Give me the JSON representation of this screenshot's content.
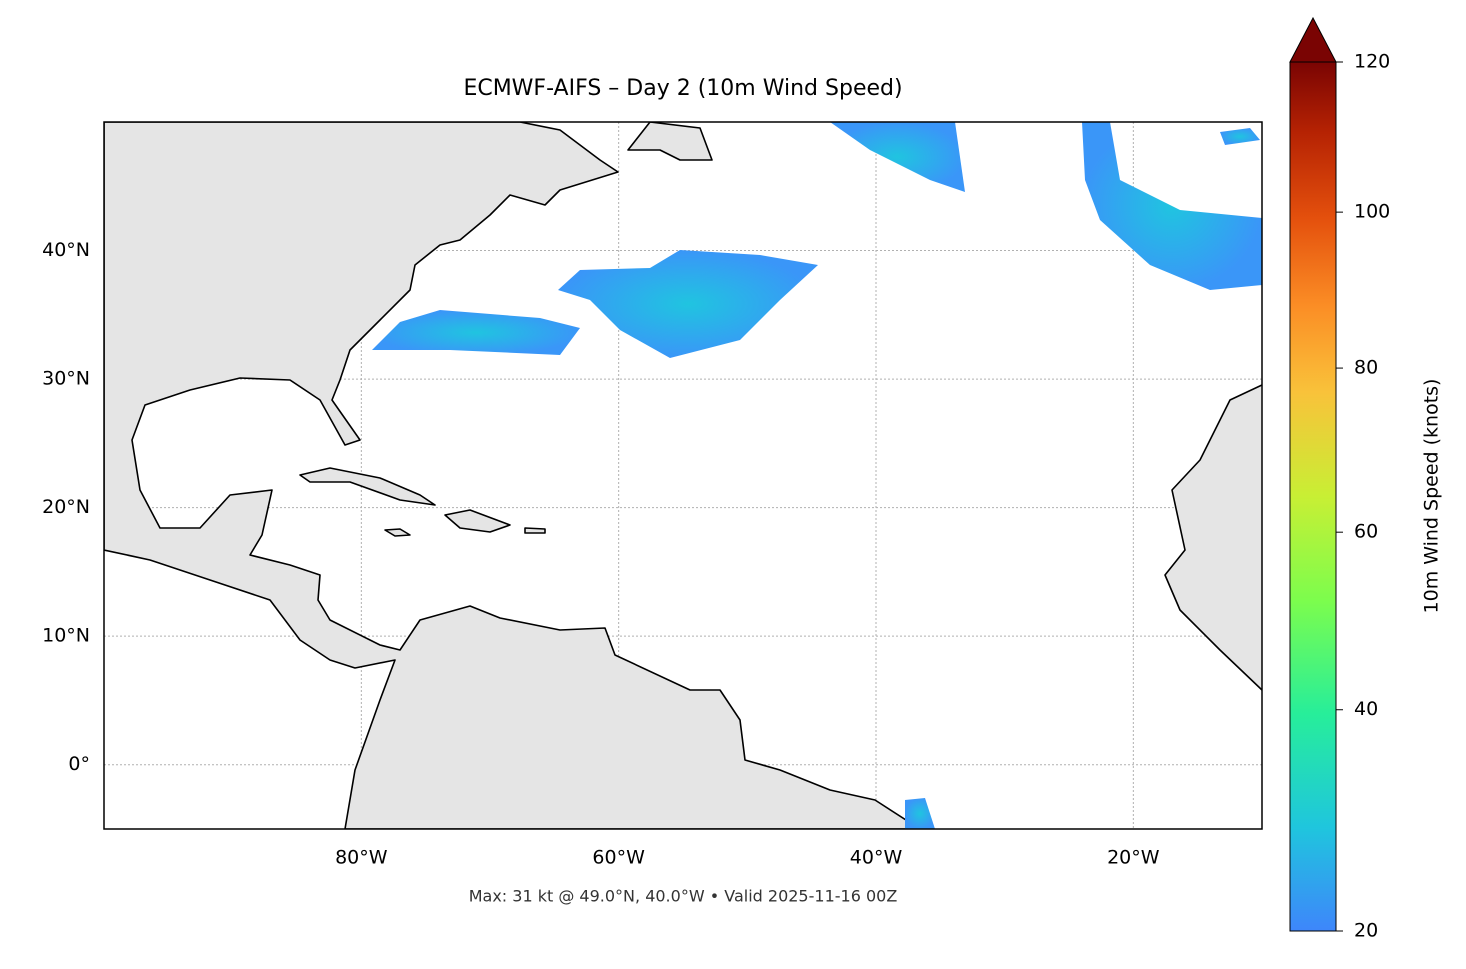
{
  "chart_data": {
    "type": "map",
    "title": "ECMWF-AIFS – Day 2 (10m Wind Speed)",
    "footnote": "Max: 31 kt @ 49.0°N, 40.0°W • Valid 2025-11-16 00Z",
    "xlim": [
      -100,
      -10
    ],
    "ylim": [
      -5,
      50
    ],
    "xticks": [
      {
        "value": -80,
        "label": "80°W"
      },
      {
        "value": -60,
        "label": "60°W"
      },
      {
        "value": -40,
        "label": "40°W"
      },
      {
        "value": -20,
        "label": "20°W"
      }
    ],
    "yticks": [
      {
        "value": 0,
        "label": "0°"
      },
      {
        "value": 10,
        "label": "10°N"
      },
      {
        "value": 20,
        "label": "20°N"
      },
      {
        "value": 30,
        "label": "30°N"
      },
      {
        "value": 40,
        "label": "40°N"
      }
    ],
    "grid": true,
    "colorbar": {
      "label": "10m Wind Speed (knots)",
      "lim": [
        20,
        120
      ],
      "ticks": [
        20,
        40,
        60,
        80,
        100,
        120
      ],
      "norm_gamma": 0.85
    }
  }
}
